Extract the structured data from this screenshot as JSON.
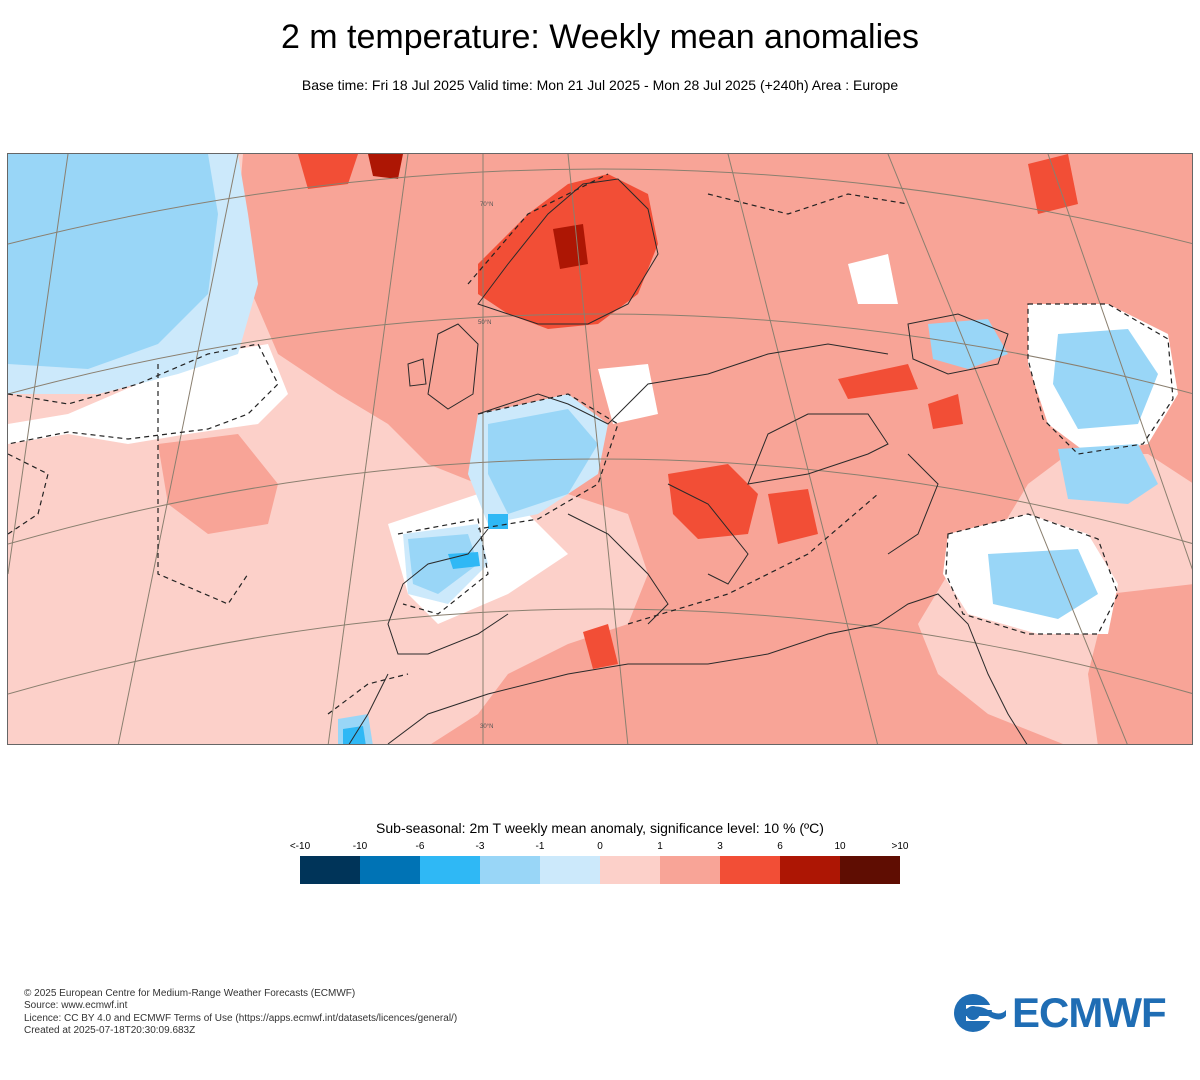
{
  "header": {
    "title": "2 m temperature: Weekly mean anomalies",
    "subtitle": "Base time: Fri 18 Jul 2025 Valid time: Mon 21 Jul 2025 - Mon 28 Jul 2025 (+240h) Area : Europe"
  },
  "map": {
    "area": "Europe",
    "graticule_labels": [
      "70°N",
      "50°N",
      "30°N"
    ]
  },
  "legend": {
    "title": "Sub-seasonal: 2m T weekly mean anomaly, significance level: 10 % (ºC)",
    "labels": [
      "<-10",
      "-10",
      "-6",
      "-3",
      "-1",
      "0",
      "1",
      "3",
      "6",
      "10",
      ">10"
    ],
    "colors": [
      "#003459",
      "#0073b5",
      "#2fb8f5",
      "#99d6f7",
      "#cce9fb",
      "#fcd0c9",
      "#f8a497",
      "#f24e36",
      "#ad1604",
      "#5f0d02"
    ]
  },
  "footer": {
    "lines": [
      "© 2025 European Centre for Medium-Range Weather Forecasts (ECMWF)",
      "Source: www.ecmwf.int",
      "Licence: CC BY 4.0 and ECMWF Terms of Use (https://apps.ecmwf.int/datasets/licences/general/)",
      "Created at 2025-07-18T20:30:09.683Z"
    ]
  },
  "logo": {
    "text": "ECMWF"
  }
}
